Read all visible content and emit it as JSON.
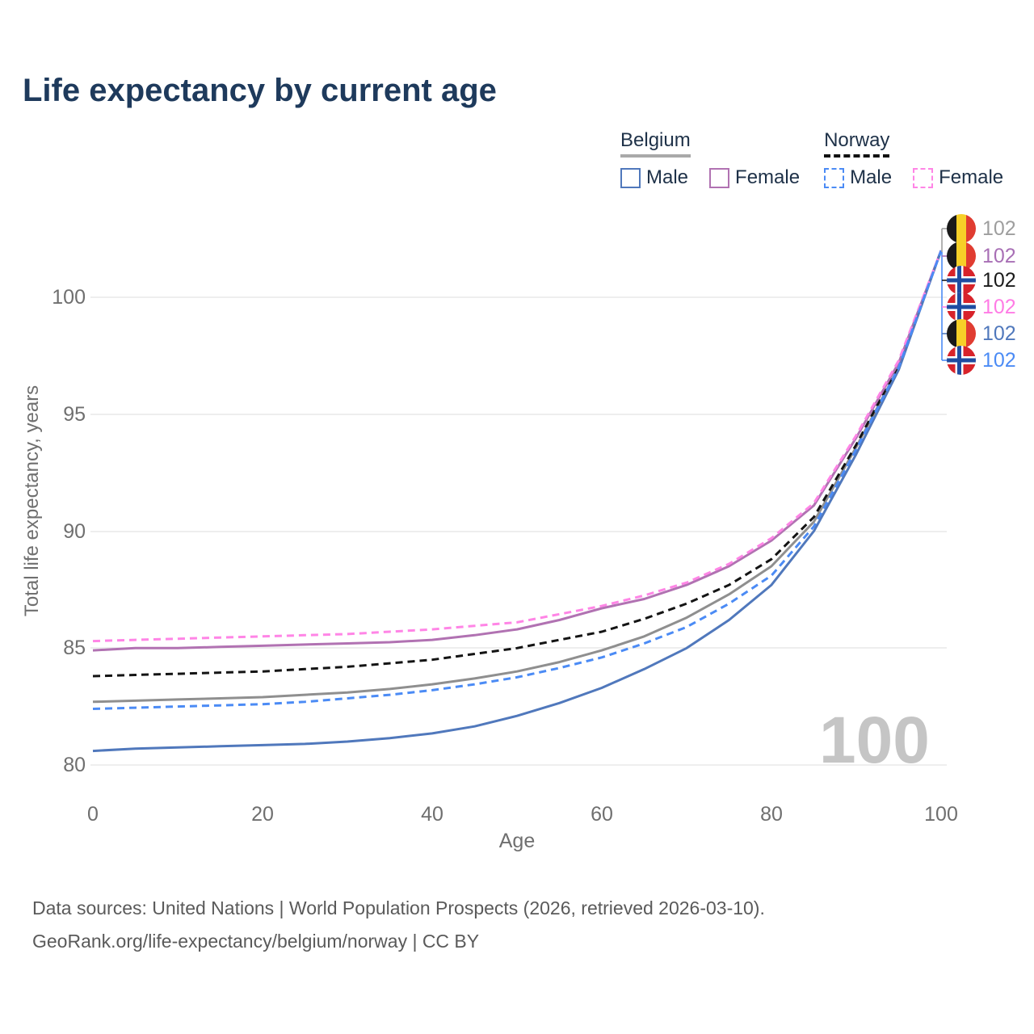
{
  "title": "Life expectancy by current age",
  "legend": {
    "groups": [
      {
        "label": "Belgium",
        "underline_style": "solid",
        "items": [
          {
            "label": "Male",
            "color": "#5078bc",
            "dashed": false
          },
          {
            "label": "Female",
            "color": "#b172b2",
            "dashed": false
          }
        ]
      },
      {
        "label": "Norway",
        "underline_style": "dashed",
        "items": [
          {
            "label": "Male",
            "color": "#4b8bf5",
            "dashed": true
          },
          {
            "label": "Female",
            "color": "#ff85e6",
            "dashed": true
          }
        ]
      }
    ]
  },
  "chart_data": {
    "type": "line",
    "title": "Life expectancy by current age",
    "xlabel": "Age",
    "ylabel": "Total life expectancy, years",
    "xlim": [
      0,
      100
    ],
    "ylim": [
      80,
      102
    ],
    "xticks": [
      0,
      20,
      40,
      60,
      80,
      100
    ],
    "yticks": [
      80,
      85,
      90,
      95,
      100
    ],
    "grid": "horizontal",
    "legend_position": "top-right",
    "x": [
      0,
      5,
      10,
      15,
      20,
      25,
      30,
      35,
      40,
      45,
      50,
      55,
      60,
      65,
      70,
      75,
      80,
      85,
      90,
      95,
      100
    ],
    "series": [
      {
        "name": "Belgium All",
        "country": "Belgium",
        "sex": "All",
        "color": "#8f8f8f",
        "dashed": false,
        "values": [
          82.7,
          82.75,
          82.8,
          82.85,
          82.9,
          83.0,
          83.1,
          83.25,
          83.45,
          83.7,
          84.0,
          84.4,
          84.9,
          85.5,
          86.3,
          87.3,
          88.5,
          90.4,
          93.6,
          97.0,
          102
        ]
      },
      {
        "name": "Norway All",
        "country": "Norway",
        "sex": "All",
        "color": "#141414",
        "dashed": true,
        "values": [
          83.8,
          83.85,
          83.9,
          83.95,
          84.0,
          84.1,
          84.2,
          84.35,
          84.5,
          84.75,
          85.0,
          85.35,
          85.7,
          86.25,
          86.9,
          87.7,
          88.8,
          90.6,
          93.7,
          97.1,
          102
        ]
      },
      {
        "name": "Belgium Female",
        "country": "Belgium",
        "sex": "Female",
        "color": "#b172b2",
        "dashed": false,
        "values": [
          84.9,
          85.0,
          85.0,
          85.05,
          85.1,
          85.15,
          85.2,
          85.25,
          85.35,
          85.55,
          85.8,
          86.2,
          86.7,
          87.1,
          87.7,
          88.5,
          89.6,
          91.1,
          94.0,
          97.2,
          102
        ]
      },
      {
        "name": "Belgium Male",
        "country": "Belgium",
        "sex": "Male",
        "color": "#5078bc",
        "dashed": false,
        "values": [
          80.6,
          80.7,
          80.75,
          80.8,
          80.85,
          80.9,
          81.0,
          81.15,
          81.35,
          81.65,
          82.1,
          82.65,
          83.3,
          84.1,
          85.0,
          86.2,
          87.7,
          90.0,
          93.3,
          96.9,
          102
        ]
      },
      {
        "name": "Norway Female",
        "country": "Norway",
        "sex": "Female",
        "color": "#ff85e6",
        "dashed": true,
        "values": [
          85.3,
          85.35,
          85.4,
          85.45,
          85.5,
          85.55,
          85.6,
          85.7,
          85.8,
          85.95,
          86.1,
          86.45,
          86.8,
          87.25,
          87.8,
          88.6,
          89.7,
          91.2,
          94.1,
          97.3,
          102
        ]
      },
      {
        "name": "Norway Male",
        "country": "Norway",
        "sex": "Male",
        "color": "#4b8bf5",
        "dashed": true,
        "values": [
          82.4,
          82.45,
          82.5,
          82.55,
          82.6,
          82.7,
          82.85,
          83.0,
          83.2,
          83.45,
          83.75,
          84.15,
          84.6,
          85.2,
          85.9,
          86.9,
          88.1,
          90.2,
          93.5,
          97.0,
          102
        ]
      }
    ]
  },
  "end_labels": [
    {
      "flag": "belgium",
      "value": "102",
      "color": "#9e9e9e",
      "series": "Belgium All"
    },
    {
      "flag": "belgium",
      "value": "102",
      "color": "#a86fb5",
      "series": "Belgium Female"
    },
    {
      "flag": "norway",
      "value": "102",
      "color": "#1a1a1a",
      "series": "Norway All"
    },
    {
      "flag": "norway",
      "value": "102",
      "color": "#ff7ce5",
      "series": "Norway Female"
    },
    {
      "flag": "belgium",
      "value": "102",
      "color": "#5078bc",
      "series": "Belgium Male"
    },
    {
      "flag": "norway",
      "value": "102",
      "color": "#4b8bf5",
      "series": "Norway Male"
    }
  ],
  "watermark": "100",
  "footer": {
    "line1": "Data sources: United Nations | World Population Prospects (2026, retrieved 2026-03-10).",
    "line2": "GeoRank.org/life-expectancy/belgium/norway | CC BY"
  }
}
